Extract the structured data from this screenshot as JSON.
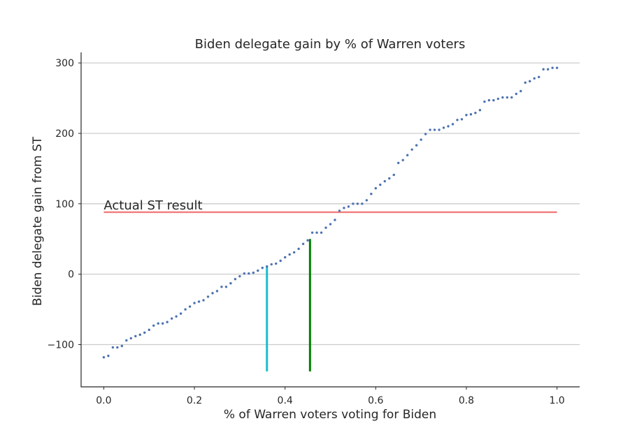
{
  "chart_data": {
    "type": "scatter",
    "title": "Biden delegate gain by % of Warren voters",
    "xlabel": "% of Warren voters voting for Biden",
    "ylabel": "Biden delegate gain from ST",
    "xlim": [
      -0.05,
      1.05
    ],
    "ylim": [
      -160,
      315
    ],
    "x_ticks": [
      0.0,
      0.2,
      0.4,
      0.6,
      0.8,
      1.0
    ],
    "x_tick_labels": [
      "0.0",
      "0.2",
      "0.4",
      "0.6",
      "0.8",
      "1.0"
    ],
    "y_ticks": [
      -100,
      0,
      100,
      200,
      300
    ],
    "y_tick_labels": [
      "−100",
      "0",
      "100",
      "200",
      "300"
    ],
    "grid": "y",
    "marker_color": "#4c72b0",
    "points": {
      "x": [
        0.0,
        0.01,
        0.02,
        0.03,
        0.04,
        0.05,
        0.06,
        0.07,
        0.08,
        0.09,
        0.1,
        0.11,
        0.12,
        0.13,
        0.14,
        0.15,
        0.16,
        0.17,
        0.18,
        0.19,
        0.2,
        0.21,
        0.22,
        0.23,
        0.24,
        0.25,
        0.26,
        0.27,
        0.28,
        0.29,
        0.3,
        0.31,
        0.32,
        0.33,
        0.34,
        0.35,
        0.36,
        0.37,
        0.38,
        0.39,
        0.4,
        0.41,
        0.42,
        0.43,
        0.44,
        0.45,
        0.46,
        0.47,
        0.48,
        0.49,
        0.5,
        0.51,
        0.52,
        0.53,
        0.54,
        0.55,
        0.56,
        0.57,
        0.58,
        0.59,
        0.6,
        0.61,
        0.62,
        0.63,
        0.64,
        0.65,
        0.66,
        0.67,
        0.68,
        0.69,
        0.7,
        0.71,
        0.72,
        0.73,
        0.74,
        0.75,
        0.76,
        0.77,
        0.78,
        0.79,
        0.8,
        0.81,
        0.82,
        0.83,
        0.84,
        0.85,
        0.86,
        0.87,
        0.88,
        0.89,
        0.9,
        0.91,
        0.92,
        0.93,
        0.94,
        0.95,
        0.96,
        0.97,
        0.98,
        0.99,
        1.0
      ],
      "y": [
        -118,
        -116,
        -104,
        -104,
        -102,
        -94,
        -91,
        -88,
        -86,
        -83,
        -79,
        -73,
        -70,
        -70,
        -68,
        -63,
        -60,
        -56,
        -50,
        -46,
        -41,
        -39,
        -37,
        -32,
        -27,
        -24,
        -18,
        -18,
        -13,
        -7,
        -3,
        1,
        1,
        2,
        5,
        9,
        11,
        14,
        15,
        19,
        24,
        28,
        31,
        36,
        43,
        48,
        59,
        59,
        59,
        66,
        71,
        77,
        90,
        94,
        96,
        100,
        100,
        100,
        105,
        114,
        122,
        127,
        132,
        136,
        141,
        158,
        162,
        169,
        177,
        183,
        191,
        199,
        205,
        205,
        205,
        208,
        210,
        213,
        219,
        220,
        226,
        227,
        229,
        233,
        245,
        247,
        247,
        249,
        251,
        251,
        251,
        256,
        260,
        272,
        274,
        278,
        280,
        291,
        291,
        293,
        293
      ]
    },
    "reference_line": {
      "label": "Actual ST result",
      "y": 88,
      "x_start": 0.0,
      "x_end": 1.0,
      "color": "#f08080"
    },
    "vertical_lines": [
      {
        "x": 0.36,
        "y_min": -138,
        "y_max": 12,
        "color": "#17becf"
      },
      {
        "x": 0.455,
        "y_min": -138,
        "y_max": 50,
        "color": "#008000"
      }
    ]
  }
}
